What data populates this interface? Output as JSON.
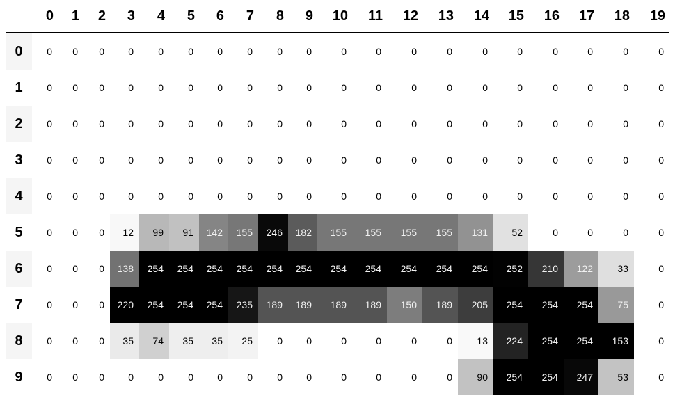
{
  "columns": [
    "0",
    "1",
    "2",
    "3",
    "4",
    "5",
    "6",
    "7",
    "8",
    "9",
    "10",
    "11",
    "12",
    "13",
    "14",
    "15",
    "16",
    "17",
    "18",
    "19"
  ],
  "index": [
    "0",
    "1",
    "2",
    "3",
    "4",
    "5",
    "6",
    "7",
    "8",
    "9"
  ],
  "colormap": "Greys",
  "gradient_axis": "columns",
  "values": [
    [
      0,
      0,
      0,
      0,
      0,
      0,
      0,
      0,
      0,
      0,
      0,
      0,
      0,
      0,
      0,
      0,
      0,
      0,
      0,
      0
    ],
    [
      0,
      0,
      0,
      0,
      0,
      0,
      0,
      0,
      0,
      0,
      0,
      0,
      0,
      0,
      0,
      0,
      0,
      0,
      0,
      0
    ],
    [
      0,
      0,
      0,
      0,
      0,
      0,
      0,
      0,
      0,
      0,
      0,
      0,
      0,
      0,
      0,
      0,
      0,
      0,
      0,
      0
    ],
    [
      0,
      0,
      0,
      0,
      0,
      0,
      0,
      0,
      0,
      0,
      0,
      0,
      0,
      0,
      0,
      0,
      0,
      0,
      0,
      0
    ],
    [
      0,
      0,
      0,
      0,
      0,
      0,
      0,
      0,
      0,
      0,
      0,
      0,
      0,
      0,
      0,
      0,
      0,
      0,
      0,
      0
    ],
    [
      0,
      0,
      0,
      12,
      99,
      91,
      142,
      155,
      246,
      182,
      155,
      155,
      155,
      155,
      131,
      52,
      0,
      0,
      0,
      0
    ],
    [
      0,
      0,
      0,
      138,
      254,
      254,
      254,
      254,
      254,
      254,
      254,
      254,
      254,
      254,
      254,
      252,
      210,
      122,
      33,
      0
    ],
    [
      0,
      0,
      0,
      220,
      254,
      254,
      254,
      235,
      189,
      189,
      189,
      189,
      150,
      189,
      205,
      254,
      254,
      254,
      75,
      0
    ],
    [
      0,
      0,
      0,
      35,
      74,
      35,
      35,
      25,
      0,
      0,
      0,
      0,
      0,
      0,
      13,
      224,
      254,
      254,
      153,
      0
    ],
    [
      0,
      0,
      0,
      0,
      0,
      0,
      0,
      0,
      0,
      0,
      0,
      0,
      0,
      0,
      90,
      254,
      254,
      247,
      53,
      0
    ]
  ]
}
